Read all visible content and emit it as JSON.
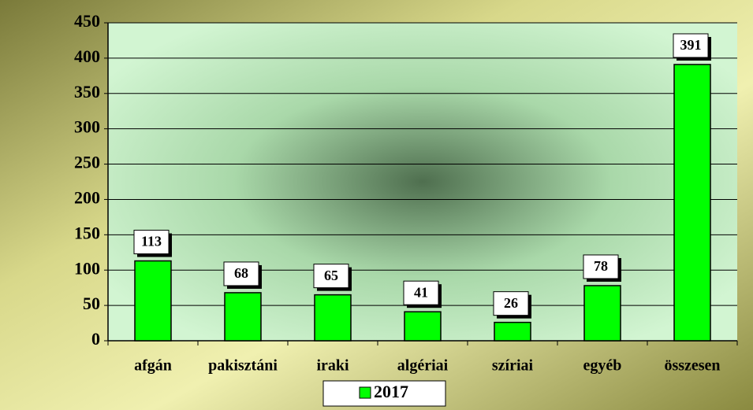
{
  "chart_data": {
    "type": "bar",
    "categories": [
      "afgán",
      "pakisztáni",
      "iraki",
      "algériai",
      "szíriai",
      "egyéb",
      "összesen"
    ],
    "series": [
      {
        "name": "2017",
        "color": "#00ff00",
        "values": [
          113,
          68,
          65,
          41,
          26,
          78,
          391
        ]
      }
    ],
    "ylim": [
      0,
      450
    ],
    "yticks": [
      0,
      50,
      100,
      150,
      200,
      250,
      300,
      350,
      400,
      450
    ],
    "grid": true,
    "legend": "bottom"
  }
}
